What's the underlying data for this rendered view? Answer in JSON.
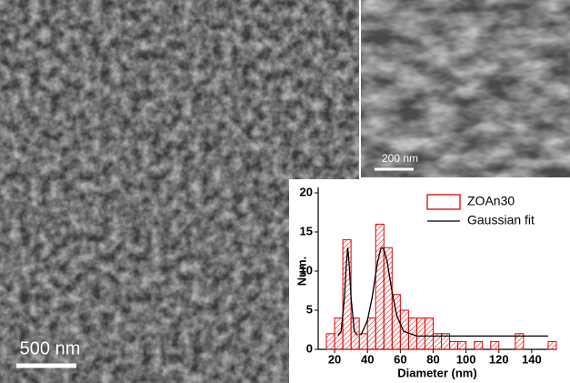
{
  "scale_bars": {
    "main": "500 nm",
    "inset": "200 nm"
  },
  "chart_data": {
    "type": "histogram",
    "xlabel": "Diameter (nm)",
    "ylabel": "Num.",
    "bins": [
      15,
      20,
      25,
      30,
      35,
      40,
      45,
      50,
      55,
      60,
      65,
      70,
      75,
      80,
      85,
      90,
      95,
      100,
      105,
      110,
      115,
      120,
      125,
      130,
      135,
      140,
      145,
      150,
      155
    ],
    "series": [
      {
        "name": "ZOAn30",
        "color": "#e00000",
        "values": [
          2,
          4,
          14,
          4,
          2,
          4,
          16,
          13,
          7,
          5,
          4,
          4,
          4,
          2,
          2,
          1,
          1,
          0,
          1,
          0,
          1,
          0,
          0,
          2,
          0,
          0,
          0,
          1
        ]
      },
      {
        "name": "Gaussian fit",
        "color": "#000000",
        "type": "line",
        "x": [
          22,
          24,
          26,
          27,
          28,
          29,
          30,
          32,
          34,
          35,
          36,
          40,
          43,
          46,
          48,
          49,
          50,
          52,
          55,
          58,
          62,
          70,
          150
        ],
        "values": [
          1.8,
          2.3,
          6.6,
          10.5,
          13,
          10.5,
          6.6,
          2.3,
          1.8,
          null,
          1.8,
          3.7,
          6.8,
          11,
          12.8,
          13,
          12.8,
          11.2,
          7.3,
          4.2,
          2.3,
          1.7,
          1.7
        ]
      }
    ],
    "xlim": [
      10,
      155
    ],
    "ylim": [
      0,
      20
    ],
    "xticks": [
      20,
      40,
      60,
      80,
      100,
      120,
      140
    ],
    "yticks": [
      0,
      5,
      10,
      15,
      20
    ]
  }
}
